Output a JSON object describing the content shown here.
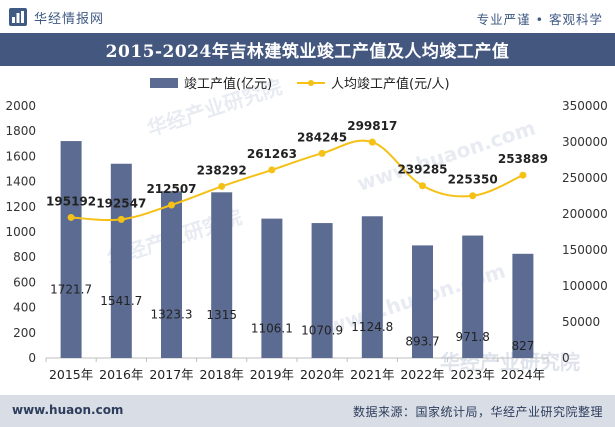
{
  "header": {
    "brand": "华经情报网",
    "slogan": "专业严谨 • 客观科学"
  },
  "title": "2015-2024年吉林建筑业竣工产值及人均竣工产值",
  "footer": {
    "website": "www.huaon.com",
    "source": "数据来源：国家统计局，华经产业研究院整理"
  },
  "watermarks": [
    "华经产业研究院",
    "www.huaon.com"
  ],
  "colors": {
    "bar": "#5c6b91",
    "line": "#f5c116",
    "title_bg": "#44577f",
    "footer_bg": "#d9dde6"
  },
  "chart_data": {
    "type": "bar+line",
    "categories": [
      "2015年",
      "2016年",
      "2017年",
      "2018年",
      "2019年",
      "2020年",
      "2021年",
      "2022年",
      "2023年",
      "2024年"
    ],
    "series": [
      {
        "name": "竣工产值(亿元)",
        "type": "bar",
        "axis": "left",
        "values": [
          1721.7,
          1541.7,
          1323.3,
          1315,
          1106.1,
          1070.9,
          1124.8,
          893.7,
          971.8,
          827
        ],
        "labels": [
          "1721.7",
          "1541.7",
          "1323.3",
          "1315",
          "1106.1",
          "1070.9",
          "1124.8",
          "893.7",
          "971.8",
          "827"
        ]
      },
      {
        "name": "人均竣工产值(元/人)",
        "type": "line",
        "axis": "right",
        "values": [
          195192,
          192547,
          212507,
          238292,
          261263,
          284245,
          299817,
          239285,
          225350,
          253889
        ],
        "labels": [
          "195192",
          "192547",
          "212507",
          "238292",
          "261263",
          "284245",
          "299817",
          "239285",
          "225350",
          "253889"
        ]
      }
    ],
    "left_axis": {
      "ylim": [
        0,
        2000
      ],
      "ticks": [
        "0",
        "200",
        "400",
        "600",
        "800",
        "1000",
        "1200",
        "1400",
        "1600",
        "1800",
        "2000"
      ]
    },
    "right_axis": {
      "ylim": [
        0,
        350000
      ],
      "ticks": [
        "0",
        "50000",
        "100000",
        "150000",
        "200000",
        "250000",
        "300000",
        "350000"
      ]
    },
    "legend_position": "top-center",
    "grid": false
  }
}
